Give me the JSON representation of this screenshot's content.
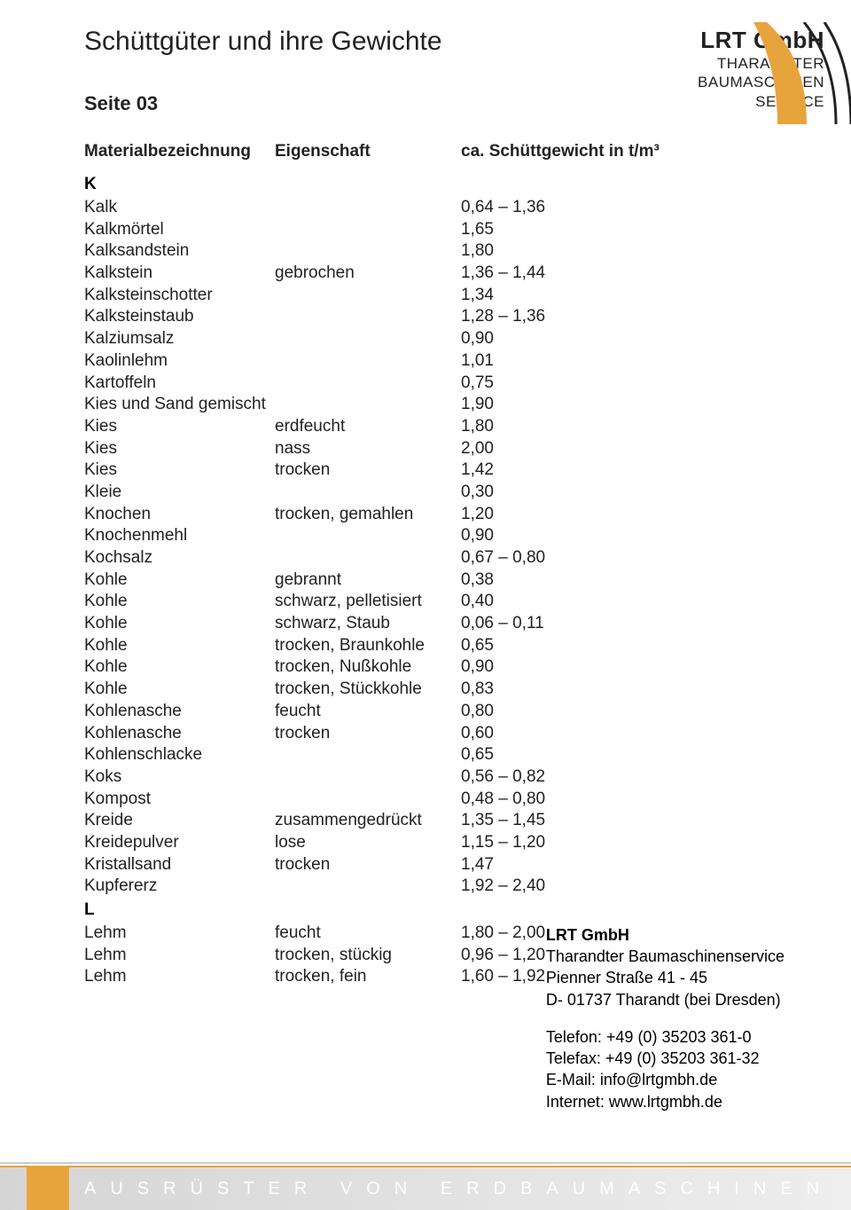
{
  "title": "Schüttgüter und ihre Gewichte",
  "page_label": "Seite 03",
  "logo": {
    "company": "LRT GmbH",
    "line1": "THARANDTER",
    "line2": "BAUMASCHINEN",
    "line3": "SERVICE",
    "shape_color": "#e8a43c",
    "line_color": "#222"
  },
  "headers": {
    "material": "Materialbezeichnung",
    "property": "Eigenschaft",
    "weight": "ca. Schüttgewicht in t/m³"
  },
  "sections": [
    {
      "letter": "K",
      "rows": [
        {
          "material": "Kalk",
          "property": "",
          "weight": "0,64 – 1,36"
        },
        {
          "material": "Kalkmörtel",
          "property": "",
          "weight": "1,65"
        },
        {
          "material": "Kalksandstein",
          "property": "",
          "weight": "1,80"
        },
        {
          "material": "Kalkstein",
          "property": "gebrochen",
          "weight": "1,36 – 1,44"
        },
        {
          "material": "Kalksteinschotter",
          "property": "",
          "weight": "1,34"
        },
        {
          "material": "Kalksteinstaub",
          "property": "",
          "weight": "1,28 – 1,36"
        },
        {
          "material": "Kalziumsalz",
          "property": "",
          "weight": "0,90"
        },
        {
          "material": "Kaolinlehm",
          "property": "",
          "weight": "1,01"
        },
        {
          "material": "Kartoffeln",
          "property": "",
          "weight": "0,75"
        },
        {
          "material": "Kies und Sand gemischt",
          "property": "",
          "weight": "1,90"
        },
        {
          "material": "Kies",
          "property": "erdfeucht",
          "weight": "1,80"
        },
        {
          "material": "Kies",
          "property": "nass",
          "weight": "2,00"
        },
        {
          "material": "Kies",
          "property": "trocken",
          "weight": "1,42"
        },
        {
          "material": "Kleie",
          "property": "",
          "weight": "0,30"
        },
        {
          "material": "Knochen",
          "property": "trocken, gemahlen",
          "weight": "1,20"
        },
        {
          "material": "Knochenmehl",
          "property": "",
          "weight": "0,90"
        },
        {
          "material": "Kochsalz",
          "property": "",
          "weight": "0,67 – 0,80"
        },
        {
          "material": "Kohle",
          "property": "gebrannt",
          "weight": "0,38"
        },
        {
          "material": "Kohle",
          "property": "schwarz, pelletisiert",
          "weight": "0,40"
        },
        {
          "material": "Kohle",
          "property": "schwarz, Staub",
          "weight": "0,06 – 0,11"
        },
        {
          "material": "Kohle",
          "property": "trocken, Braunkohle",
          "weight": "0,65"
        },
        {
          "material": "Kohle",
          "property": "trocken, Nußkohle",
          "weight": "0,90"
        },
        {
          "material": "Kohle",
          "property": "trocken, Stückkohle",
          "weight": "0,83"
        },
        {
          "material": "Kohlenasche",
          "property": "feucht",
          "weight": "0,80"
        },
        {
          "material": "Kohlenasche",
          "property": "trocken",
          "weight": "0,60"
        },
        {
          "material": "Kohlenschlacke",
          "property": "",
          "weight": "0,65"
        },
        {
          "material": "Koks",
          "property": "",
          "weight": "0,56 – 0,82"
        },
        {
          "material": "Kompost",
          "property": "",
          "weight": "0,48 – 0,80"
        },
        {
          "material": "Kreide",
          "property": "zusammengedrückt",
          "weight": "1,35 – 1,45"
        },
        {
          "material": "Kreidepulver",
          "property": "lose",
          "weight": "1,15 – 1,20"
        },
        {
          "material": "Kristallsand",
          "property": "trocken",
          "weight": "1,47"
        },
        {
          "material": "Kupfererz",
          "property": "",
          "weight": "1,92 – 2,40"
        }
      ]
    },
    {
      "letter": "L",
      "rows": [
        {
          "material": "Lehm",
          "property": "feucht",
          "weight": "1,80 – 2,00"
        },
        {
          "material": "Lehm",
          "property": "trocken, stückig",
          "weight": "0,96 – 1,20"
        },
        {
          "material": "Lehm",
          "property": "trocken, fein",
          "weight": "1,60 – 1,92"
        }
      ]
    }
  ],
  "contact": {
    "company": "LRT GmbH",
    "line1": "Tharandter Baumaschinenservice",
    "line2": "Pienner Straße 41 - 45",
    "line3": "D- 01737 Tharandt (bei Dresden)",
    "phone": "Telefon: +49 (0) 35203 361-0",
    "fax": "Telefax: +49 (0) 35203 361-32",
    "email": "E-Mail: info@lrtgmbh.de",
    "web": "Internet: www.lrtgmbh.de"
  },
  "footer_slogan_parts": [
    "AUSRÜSTER",
    "VON",
    "ERDBAUMASCHINEN"
  ],
  "colors": {
    "accent": "#e8a43c",
    "text": "#222",
    "footer_text": "#fff"
  }
}
